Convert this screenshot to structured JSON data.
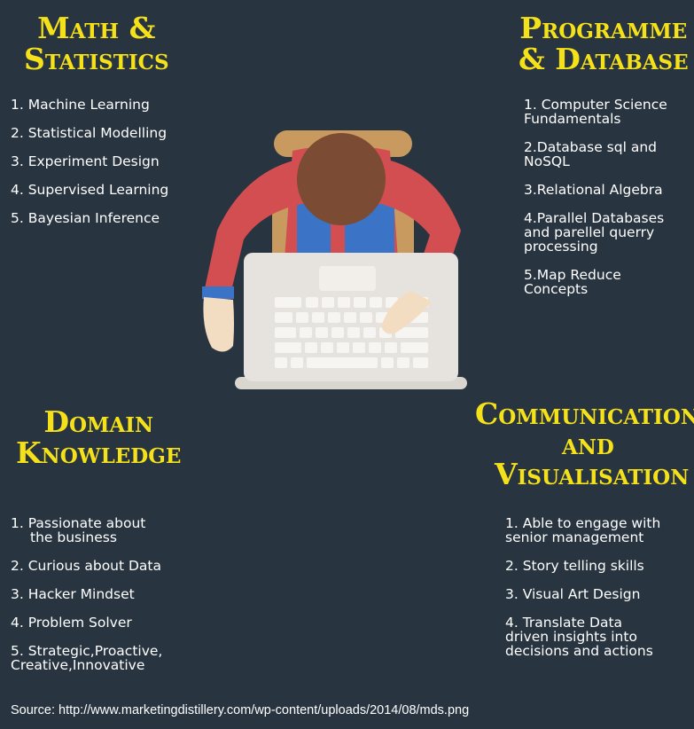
{
  "sections": {
    "math": {
      "title_lines": [
        "Math &",
        "Statistics"
      ],
      "items": [
        "1. Machine Learning",
        "2. Statistical Modelling",
        "3. Experiment Design",
        "4. Supervised Learning",
        "5. Bayesian Inference"
      ]
    },
    "programme": {
      "title_lines": [
        "Programme",
        "& Database"
      ],
      "items": [
        [
          "1. Computer Science",
          "Fundamentals"
        ],
        [
          "2.Database sql and",
          "NoSQL"
        ],
        [
          "3.Relational Algebra"
        ],
        [
          "4.Parallel Databases",
          "and parellel querry",
          "processing"
        ],
        [
          "5.Map Reduce",
          "Concepts"
        ]
      ]
    },
    "domain": {
      "title_lines": [
        "Domain",
        "Knowledge"
      ],
      "items": [
        [
          "1. Passionate about",
          "the  business"
        ],
        [
          "2. Curious about Data"
        ],
        [
          "3. Hacker Mindset"
        ],
        [
          "4. Problem Solver"
        ],
        [
          "5. Strategic,Proactive,",
          "Creative,Innovative"
        ]
      ]
    },
    "communication": {
      "title_lines": [
        "Communication",
        "and",
        "Visualisation"
      ],
      "items": [
        [
          "1. Able to engage with",
          "senior management"
        ],
        [
          "2. Story telling skills"
        ],
        [
          "3. Visual Art Design"
        ],
        [
          "4. Translate Data",
          "driven insights into",
          "decisions and actions"
        ]
      ]
    }
  },
  "source": "Source: http://www.marketingdistillery.com/wp-content/uploads/2014/08/mds.png",
  "colors": {
    "background": "#283440",
    "heading": "#f5e11a",
    "text": "#ffffff"
  },
  "illustration": "person-at-laptop-top-view"
}
